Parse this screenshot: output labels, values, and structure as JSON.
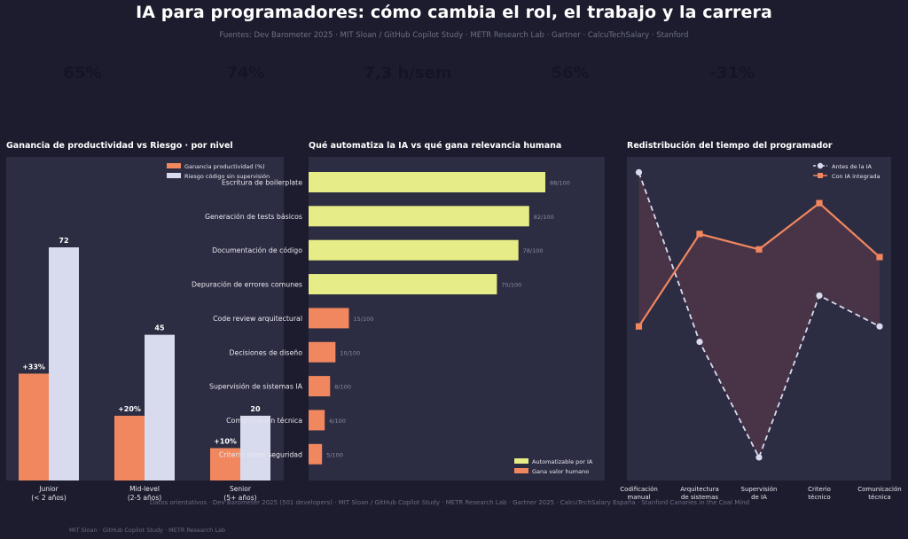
{
  "header": {
    "title": "IA para programadores: cómo cambia el rol, el trabajo y la carrera",
    "sources": "Fuentes: Dev Barometer 2025 · MIT Sloan / GitHub Copilot Study · METR Research Lab · Gartner · CalcuTechSalary · Stanford"
  },
  "kpis": [
    {
      "value": "65%",
      "label": "",
      "label2": ""
    },
    {
      "value": "74%",
      "label": "",
      "label2": ""
    },
    {
      "value": "7,3 h/sem",
      "label": "",
      "label2": ""
    },
    {
      "value": "56%",
      "label": "",
      "label2": ""
    },
    {
      "value": "-31%",
      "label": "",
      "label2": ""
    }
  ],
  "colors": {
    "orange": "#f0875f",
    "lavender": "#d8daee",
    "yellow": "#e6ec86",
    "panel": "#2c2c42",
    "background": "#1c1c2e"
  },
  "panel1": {
    "title": "Ganancia de productividad vs Riesgo · por nivel"
  },
  "panel2": {
    "title": "Qué automatiza la IA vs qué gana relevancia humana"
  },
  "panel3": {
    "title": "Redistribución del tiempo del programador"
  },
  "chart_data": [
    {
      "type": "bar",
      "title": "Ganancia de productividad vs Riesgo · por nivel",
      "categories": [
        [
          "Junior",
          "(< 2 años)"
        ],
        [
          "Mid-level",
          "(2-5 años)"
        ],
        [
          "Senior",
          "(5+ años)"
        ]
      ],
      "series": [
        {
          "name": "Ganancia productividad (%)",
          "values": [
            33,
            20,
            10
          ],
          "labels": [
            "+33%",
            "+20%",
            "+10%"
          ],
          "color": "#f0875f"
        },
        {
          "name": "Riesgo código sin supervisión",
          "values": [
            72,
            45,
            20
          ],
          "labels": [
            "72",
            "45",
            "20"
          ],
          "color": "#d8daee"
        }
      ],
      "ylim": [
        0,
        72
      ],
      "legend": "top-right",
      "grid": false
    },
    {
      "type": "bar",
      "orientation": "horizontal",
      "title": "Qué automatiza la IA vs qué gana relevancia humana",
      "categories": [
        "Escritura de boilerplate",
        "Generación de tests básicos",
        "Documentación de código",
        "Depuración de errores comunes",
        "Code review arquitectural",
        "Decisiones de diseño",
        "Supervisión de sistemas IA",
        "Comunicación técnica",
        "Criterio sobre seguridad"
      ],
      "values": [
        88,
        82,
        78,
        70,
        15,
        10,
        8,
        6,
        5
      ],
      "value_labels": [
        "88/100",
        "82/100",
        "78/100",
        "70/100",
        "15/100",
        "10/100",
        "8/100",
        "6/100",
        "5/100"
      ],
      "groups": [
        "auto",
        "auto",
        "auto",
        "auto",
        "human",
        "human",
        "human",
        "human",
        "human"
      ],
      "legend_items": [
        {
          "key": "auto",
          "name": "Automatizable por IA",
          "color": "#e6ec86"
        },
        {
          "key": "human",
          "name": "Gana valor humano",
          "color": "#f0875f"
        }
      ],
      "xlim": [
        0,
        100
      ],
      "legend": "bottom-right",
      "grid": false
    },
    {
      "type": "line",
      "title": "Redistribución del tiempo del programador",
      "categories": [
        [
          "Codificación",
          "manual"
        ],
        [
          "Arquitectura",
          "de sistemas"
        ],
        [
          "Supervisión",
          "de IA"
        ],
        [
          "Criterio",
          "técnico"
        ],
        [
          "Comunicación",
          "técnica"
        ]
      ],
      "series": [
        {
          "name": "Antes de la IA",
          "values": [
            40,
            18,
            3,
            24,
            20
          ],
          "color": "#d8daee",
          "style": "dashed",
          "marker": "circle"
        },
        {
          "name": "Con IA integrada",
          "values": [
            20,
            32,
            30,
            36,
            29
          ],
          "color": "#f0875f",
          "style": "solid",
          "marker": "square"
        }
      ],
      "ylim": [
        0,
        42
      ],
      "legend": "top-right",
      "grid": false
    }
  ],
  "footer": {
    "note": "Datos orientativos · Dev Barometer 2025 (501 developers) · MIT Sloan / GitHub Copilot Study · METR Research Lab · Gartner 2025 · CalcuTechSalary España · Stanford Canaries in the Coal Mind",
    "credit": "MIT Sloan · GitHub Copilot Study · METR Research Lab"
  }
}
